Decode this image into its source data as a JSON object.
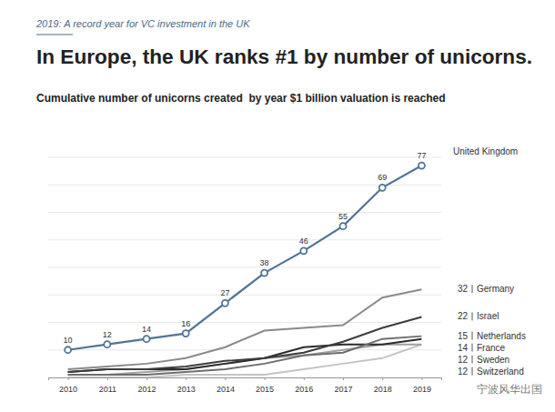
{
  "chart_data": {
    "type": "line",
    "kicker": "2019: A record year for VC investment in the UK",
    "title": "In Europe, the UK ranks #1 by number of unicorns.",
    "subtitle": "Cumulative number of unicorns created  by year $1 billion valuation is reached",
    "watermark": "宁波风华出国",
    "x": [
      2010,
      2011,
      2012,
      2013,
      2014,
      2015,
      2016,
      2017,
      2018,
      2019
    ],
    "xlim": [
      2009.5,
      2019.5
    ],
    "xticks": [
      2010,
      2011,
      2012,
      2013,
      2014,
      2015,
      2016,
      2017,
      2018,
      2019
    ],
    "ylim": [
      0,
      80
    ],
    "yticks": [
      0,
      10,
      20,
      30,
      40,
      50,
      60,
      70,
      80
    ],
    "grid": true,
    "tick_labels": "x",
    "legend": "right",
    "series": [
      {
        "name": "United Kingdom",
        "color": "#4f7597",
        "marker": "circle",
        "data_labels": true,
        "values": [
          10,
          12,
          14,
          16,
          27,
          38,
          46,
          55,
          69,
          77
        ]
      },
      {
        "name": "Germany",
        "color": "#8a8a8a",
        "values": [
          3,
          4,
          5,
          7,
          11,
          17,
          18,
          19,
          29,
          32
        ]
      },
      {
        "name": "Israel",
        "color": "#3d3d3d",
        "values": [
          2,
          3,
          3,
          4,
          6,
          7,
          9,
          13,
          18,
          22
        ]
      },
      {
        "name": "Netherlands",
        "color": "#6e6e6e",
        "values": [
          1,
          1,
          1,
          2,
          3,
          5,
          8,
          9,
          14,
          15
        ]
      },
      {
        "name": "France",
        "color": "#2b2b2b",
        "values": [
          2,
          3,
          3,
          3,
          5,
          7,
          11,
          12,
          12,
          14
        ]
      },
      {
        "name": "Sweden",
        "color": "#a0a0a0",
        "values": [
          1,
          1,
          2,
          3,
          5,
          7,
          8,
          10,
          12,
          12
        ]
      },
      {
        "name": "Switzerland",
        "color": "#c4c4c4",
        "values": [
          0,
          0,
          0,
          1,
          1,
          1,
          3,
          5,
          7,
          12
        ]
      }
    ]
  }
}
